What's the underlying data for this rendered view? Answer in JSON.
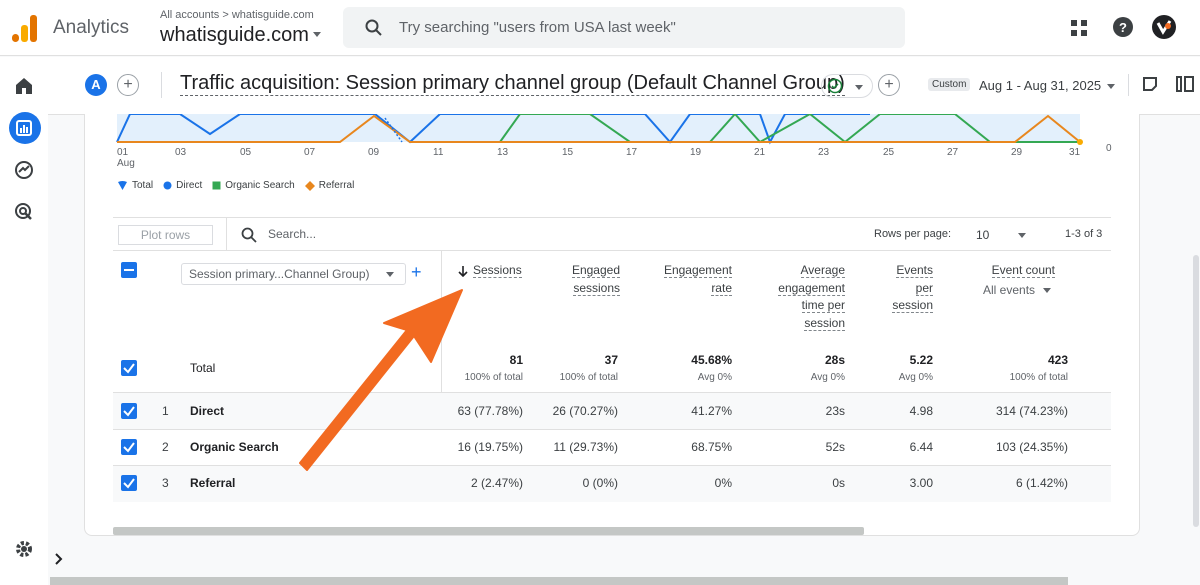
{
  "app": {
    "title": "Analytics",
    "account_crumb": "All accounts > whatisguide.com",
    "account_name": "whatisguide.com",
    "search_placeholder": "Try searching \"users from USA last week\""
  },
  "report": {
    "avatar_letter": "A",
    "title": "Traffic acquisition: Session primary channel group (Default Channel Group)",
    "date_badge": "Custom",
    "date_range": "Aug 1 - Aug 31, 2025"
  },
  "chart": {
    "x_ticks": [
      "01",
      "03",
      "05",
      "07",
      "09",
      "11",
      "13",
      "15",
      "17",
      "19",
      "21",
      "23",
      "25",
      "27",
      "29",
      "31"
    ],
    "x_month": "Aug",
    "y_zero_label": "0",
    "legend": [
      {
        "name": "Total",
        "color": "#1a73e8"
      },
      {
        "name": "Direct",
        "color": "#1a73e8"
      },
      {
        "name": "Organic Search",
        "color": "#34a853"
      },
      {
        "name": "Referral",
        "color": "#e8871e"
      }
    ]
  },
  "table": {
    "plot_rows_label": "Plot rows",
    "search_placeholder": "Search...",
    "rows_per_page_label": "Rows per page:",
    "rows_per_page_value": "10",
    "range_label": "1-3 of 3",
    "dimension_select": "Session primary...Channel Group)",
    "headers": {
      "sessions": "Sessions",
      "engaged_1": "Engaged",
      "engaged_2": "sessions",
      "er_1": "Engagement",
      "er_2": "rate",
      "aet_1": "Average",
      "aet_2": "engagement",
      "aet_3": "time per",
      "aet_4": "session",
      "eps_1": "Events",
      "eps_2": "per",
      "eps_3": "session",
      "ec_1": "Event count",
      "ec_filter": "All events"
    },
    "total": {
      "label": "Total",
      "sessions": "81",
      "sessions_sub": "100% of total",
      "engaged": "37",
      "engaged_sub": "100% of total",
      "er": "45.68%",
      "er_sub": "Avg 0%",
      "aet": "28s",
      "aet_sub": "Avg 0%",
      "eps": "5.22",
      "eps_sub": "Avg 0%",
      "ec": "423",
      "ec_sub": "100% of total"
    },
    "rows": [
      {
        "num": "1",
        "name": "Direct",
        "sessions": "63 (77.78%)",
        "engaged": "26 (70.27%)",
        "er": "41.27%",
        "aet": "23s",
        "eps": "4.98",
        "ec": "314 (74.23%)"
      },
      {
        "num": "2",
        "name": "Organic Search",
        "sessions": "16 (19.75%)",
        "engaged": "11 (29.73%)",
        "er": "68.75%",
        "aet": "52s",
        "eps": "6.44",
        "ec": "103 (24.35%)"
      },
      {
        "num": "3",
        "name": "Referral",
        "sessions": "2 (2.47%)",
        "engaged": "0 (0%)",
        "er": "0%",
        "aet": "0s",
        "eps": "3.00",
        "ec": "6 (1.42%)"
      }
    ]
  },
  "colors": {
    "accent": "#1a73e8",
    "annotation_arrow": "#f26a21"
  }
}
